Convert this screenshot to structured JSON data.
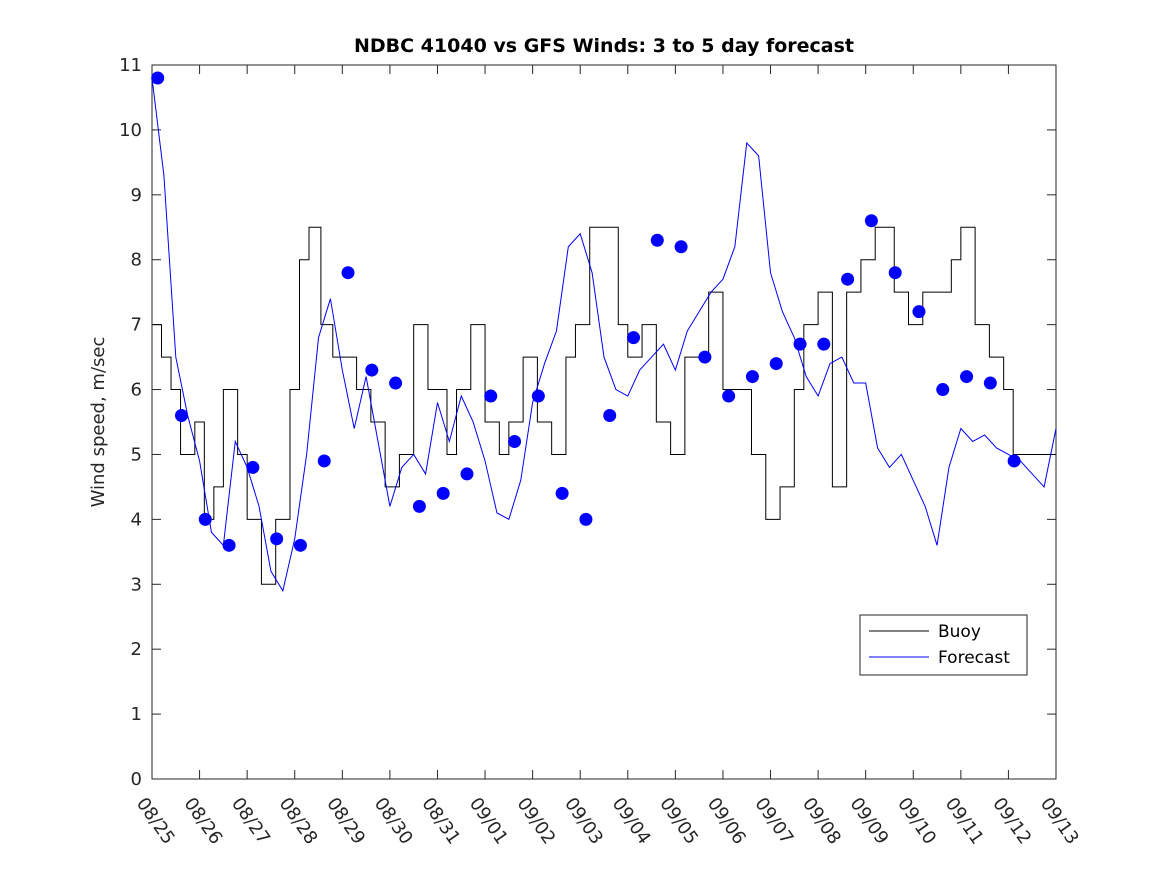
{
  "chart_data": {
    "type": "line",
    "title": "NDBC 41040 vs GFS Winds: 3 to 5 day forecast",
    "xlabel": "",
    "ylabel": "Wind speed, m/sec",
    "xlim": [
      0,
      19
    ],
    "ylim": [
      0,
      11
    ],
    "x_tick_labels": [
      "08/25",
      "08/26",
      "08/27",
      "08/28",
      "08/29",
      "08/30",
      "08/31",
      "09/01",
      "09/02",
      "09/03",
      "09/04",
      "09/05",
      "09/06",
      "09/07",
      "09/08",
      "09/09",
      "09/10",
      "09/11",
      "09/12",
      "09/13"
    ],
    "y_ticks": [
      0,
      1,
      2,
      3,
      4,
      5,
      6,
      7,
      8,
      9,
      10,
      11
    ],
    "legend": {
      "position": "lower-right",
      "entries": [
        "Buoy",
        "Forecast"
      ]
    },
    "colors": {
      "buoy": "#000000",
      "forecast": "#0000ff",
      "axis": "#262626"
    },
    "series": [
      {
        "name": "Buoy",
        "style": "step",
        "x": [
          0,
          0.2,
          0.4,
          0.6,
          0.9,
          1.1,
          1.3,
          1.5,
          1.8,
          2.0,
          2.3,
          2.6,
          2.9,
          3.1,
          3.3,
          3.55,
          3.8,
          4.0,
          4.3,
          4.6,
          4.9,
          5.2,
          5.5,
          5.8,
          6.0,
          6.2,
          6.4,
          6.7,
          7.0,
          7.3,
          7.5,
          7.8,
          8.1,
          8.4,
          8.7,
          8.9,
          9.2,
          9.5,
          9.8,
          10.0,
          10.3,
          10.6,
          10.9,
          11.2,
          11.5,
          11.7,
          12.0,
          12.3,
          12.6,
          12.9,
          13.2,
          13.5,
          13.7,
          14.0,
          14.3,
          14.6,
          14.9,
          15.2,
          15.4,
          15.6,
          15.9,
          16.2,
          16.5,
          16.8,
          17.0,
          17.3,
          17.6,
          17.9,
          18.1,
          18.4,
          18.6,
          18.8,
          19.0
        ],
        "values": [
          7,
          6.5,
          6,
          5,
          5.5,
          4,
          4.5,
          6,
          5,
          4,
          3,
          4,
          6,
          8,
          8.5,
          7,
          6.5,
          6.5,
          6,
          5.5,
          4.5,
          5,
          7,
          6,
          6,
          5,
          6,
          7,
          5.5,
          5,
          5.5,
          6.5,
          5.5,
          5,
          6.5,
          7,
          8.5,
          8.5,
          7,
          6.5,
          7,
          5.5,
          5,
          6.5,
          6.5,
          7.5,
          6,
          6,
          5,
          4,
          4.5,
          6,
          7,
          7.5,
          4.5,
          7.5,
          8,
          8.5,
          8.5,
          7.5,
          7,
          7.5,
          7.5,
          8,
          8.5,
          7,
          6.5,
          6,
          5,
          5,
          5,
          5,
          5
        ]
      },
      {
        "name": "Forecast",
        "style": "line",
        "x": [
          0,
          0.25,
          0.5,
          0.75,
          1.0,
          1.25,
          1.5,
          1.75,
          2.0,
          2.25,
          2.5,
          2.75,
          3.0,
          3.25,
          3.5,
          3.75,
          4.0,
          4.25,
          4.5,
          4.75,
          5.0,
          5.25,
          5.5,
          5.75,
          6.0,
          6.25,
          6.5,
          6.75,
          7.0,
          7.25,
          7.5,
          7.75,
          8.0,
          8.25,
          8.5,
          8.75,
          9.0,
          9.25,
          9.5,
          9.75,
          10.0,
          10.25,
          10.5,
          10.75,
          11.0,
          11.25,
          11.5,
          11.75,
          12.0,
          12.25,
          12.5,
          12.75,
          13.0,
          13.25,
          13.5,
          13.75,
          14.0,
          14.25,
          14.5,
          14.75,
          15.0,
          15.25,
          15.5,
          15.75,
          16.0,
          16.25,
          16.5,
          16.75,
          17.0,
          17.25,
          17.5,
          17.75,
          18.0,
          18.25,
          18.5,
          18.75,
          19.0
        ],
        "values": [
          10.8,
          9.3,
          6.5,
          5.6,
          4.9,
          3.8,
          3.6,
          5.2,
          4.8,
          4.2,
          3.2,
          2.9,
          3.7,
          5.0,
          6.8,
          7.4,
          6.3,
          5.4,
          6.2,
          5.2,
          4.2,
          4.8,
          5.0,
          4.7,
          5.8,
          5.2,
          5.9,
          5.5,
          4.9,
          4.1,
          4.0,
          4.6,
          5.8,
          6.4,
          6.9,
          8.2,
          8.4,
          7.8,
          6.5,
          6.0,
          5.9,
          6.3,
          6.5,
          6.7,
          6.3,
          6.9,
          7.2,
          7.5,
          7.7,
          8.2,
          9.8,
          9.6,
          7.8,
          7.2,
          6.8,
          6.2,
          5.9,
          6.4,
          6.5,
          6.1,
          6.1,
          5.1,
          4.8,
          5.0,
          4.6,
          4.2,
          3.6,
          4.8,
          5.4,
          5.2,
          5.3,
          5.1,
          5.0,
          4.9,
          4.7,
          4.5,
          5.4
        ]
      },
      {
        "name": "Forecast daily markers",
        "style": "markers",
        "x": [
          0.12,
          0.62,
          1.12,
          1.62,
          2.12,
          2.62,
          3.12,
          3.62,
          4.12,
          4.62,
          5.12,
          5.62,
          6.12,
          6.62,
          7.12,
          7.62,
          8.12,
          8.62,
          9.12,
          9.62,
          10.12,
          10.62,
          11.12,
          11.62,
          12.12,
          12.62,
          13.12,
          13.62,
          14.12,
          14.62,
          15.12,
          15.62,
          16.12,
          16.62,
          17.12,
          17.62,
          18.12
        ],
        "values": [
          10.8,
          5.6,
          4.0,
          3.6,
          4.8,
          3.7,
          3.6,
          4.9,
          7.8,
          6.3,
          6.1,
          4.2,
          4.4,
          4.7,
          5.9,
          5.2,
          5.9,
          4.4,
          4.0,
          5.6,
          6.8,
          8.3,
          8.2,
          6.5,
          5.9,
          6.2,
          6.4,
          6.7,
          6.7,
          7.7,
          8.6,
          7.8,
          7.2,
          6.0,
          6.2,
          6.1,
          4.9
        ]
      }
    ]
  }
}
